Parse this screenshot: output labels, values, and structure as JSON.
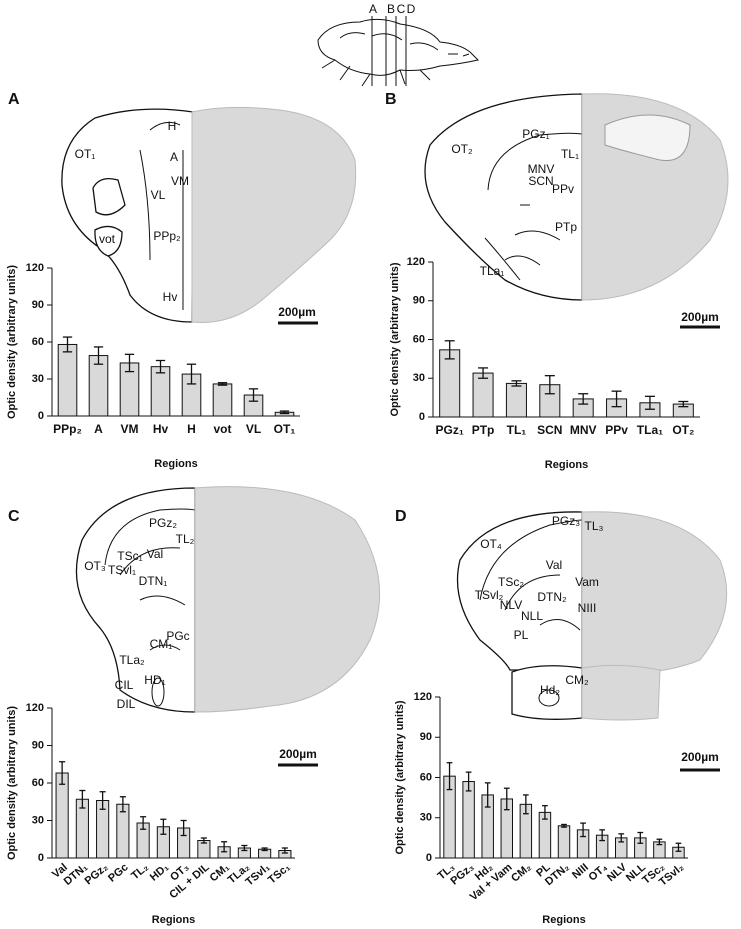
{
  "figure": {
    "section_lines": [
      "A",
      "B",
      "C",
      "D"
    ]
  },
  "chart_data": [
    {
      "type": "bar",
      "panel_label": "A",
      "ylabel": "Optic density (arbitrary units)",
      "xlabel": "Regions",
      "categories": [
        "PPp₂",
        "A",
        "VM",
        "Hv",
        "H",
        "vot",
        "VL",
        "OT₁"
      ],
      "values": [
        58,
        49,
        43,
        40,
        34,
        26,
        17,
        3
      ],
      "errors": [
        6,
        7,
        7,
        5,
        8,
        1,
        5,
        1
      ],
      "color": "#d9d9d9",
      "ylim": [
        0,
        120
      ],
      "yticks": [
        0,
        30,
        60,
        90,
        120
      ],
      "rotate_labels": false,
      "scale_bar": "200µm",
      "annotations": [
        "OT₁",
        "H",
        "A",
        "VM",
        "VL",
        "vot",
        "PPp₂",
        "Hv"
      ]
    },
    {
      "type": "bar",
      "panel_label": "B",
      "ylabel": "Optic density (arbitrary units)",
      "xlabel": "Regions",
      "categories": [
        "PGz₁",
        "PTp",
        "TL₁",
        "SCN",
        "MNV",
        "PPv",
        "TLa₁",
        "OT₂"
      ],
      "values": [
        52,
        34,
        26,
        25,
        14,
        14,
        11,
        10
      ],
      "errors": [
        7,
        4,
        2,
        7,
        4,
        6,
        5,
        2
      ],
      "color": "#d9d9d9",
      "ylim": [
        0,
        120
      ],
      "yticks": [
        0,
        30,
        60,
        90,
        120
      ],
      "rotate_labels": false,
      "scale_bar": "200µm",
      "annotations": [
        "OT₂",
        "PGz₁",
        "TL₁",
        "MNV",
        "SCN",
        "PPv",
        "PTp",
        "TLa₁"
      ]
    },
    {
      "type": "bar",
      "panel_label": "C",
      "ylabel": "Optic density (arbitrary units)",
      "xlabel": "Regions",
      "categories": [
        "Val",
        "DTN₁",
        "PGz₂",
        "PGc",
        "TL₂",
        "HD₁",
        "OT₃",
        "CIL + DIL",
        "CM₁",
        "TLa₂",
        "TSvl₁",
        "TSc₁"
      ],
      "values": [
        68,
        47,
        46,
        43,
        28,
        25,
        24,
        14,
        9,
        8,
        7,
        6
      ],
      "errors": [
        9,
        7,
        7,
        6,
        5,
        6,
        6,
        2,
        4,
        2,
        1,
        2
      ],
      "color": "#d9d9d9",
      "ylim": [
        0,
        120
      ],
      "yticks": [
        0,
        30,
        60,
        90,
        120
      ],
      "rotate_labels": true,
      "scale_bar": "200µm",
      "annotations": [
        "OT₃",
        "PGz₂",
        "TL₂",
        "TSc₁",
        "Val",
        "TSvl₁",
        "DTN₁",
        "PGc",
        "CM₁",
        "TLa₂",
        "HD₁",
        "CIL",
        "DIL"
      ]
    },
    {
      "type": "bar",
      "panel_label": "D",
      "ylabel": "Optic density (arbitrary units)",
      "xlabel": "Regions",
      "categories": [
        "TL₃",
        "PGz₃",
        "Hd₂",
        "Val + Vam",
        "CM₂",
        "PL",
        "DTN₂",
        "NIII",
        "OT₄",
        "NLV",
        "NLL",
        "TSc₂",
        "TSvl₂"
      ],
      "values": [
        61,
        57,
        47,
        44,
        40,
        34,
        24,
        21,
        17,
        15,
        15,
        12,
        8
      ],
      "errors": [
        10,
        7,
        9,
        8,
        7,
        5,
        1,
        5,
        4,
        3,
        4,
        2,
        3
      ],
      "color": "#d9d9d9",
      "ylim": [
        0,
        120
      ],
      "yticks": [
        0,
        30,
        60,
        90,
        120
      ],
      "rotate_labels": true,
      "scale_bar": "200µm",
      "annotations": [
        "OT₄",
        "PGz₃",
        "TL₃",
        "Val",
        "TSc₂",
        "Vam",
        "DTN₂",
        "TSvl₂",
        "NLV",
        "NIII",
        "NLL",
        "PL",
        "CM₂",
        "Hd₂"
      ]
    }
  ]
}
